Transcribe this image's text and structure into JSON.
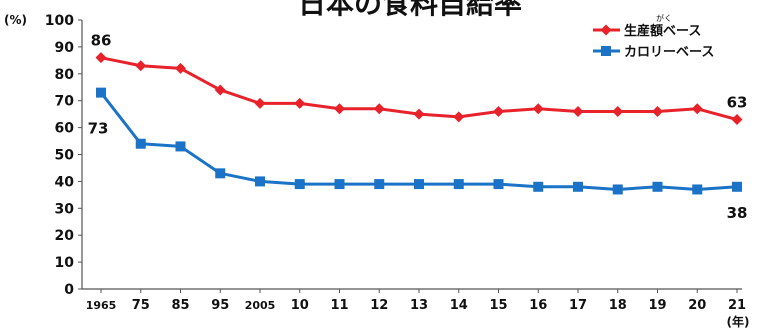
{
  "chart_data": {
    "type": "line",
    "title": "日本の食料自給率",
    "ylabel": "(%)",
    "xlabel": "(年)",
    "ylim": [
      0,
      100
    ],
    "yticks": [
      0,
      10,
      20,
      30,
      40,
      50,
      60,
      70,
      80,
      90,
      100
    ],
    "categories": [
      "1965",
      "75",
      "85",
      "95",
      "2005",
      "10",
      "11",
      "12",
      "13",
      "14",
      "15",
      "16",
      "17",
      "18",
      "19",
      "20",
      "21"
    ],
    "grid": false,
    "legend_position": "top-right",
    "legend_ruby": "がく",
    "series": [
      {
        "name": "生産額ベース",
        "color": "#e8222b",
        "marker": "diamond",
        "values": [
          86,
          83,
          82,
          74,
          69,
          69,
          67,
          67,
          65,
          64,
          66,
          67,
          66,
          66,
          66,
          67,
          63
        ]
      },
      {
        "name": "カロリーベース",
        "color": "#1a73c6",
        "marker": "square",
        "values": [
          73,
          54,
          53,
          43,
          40,
          39,
          39,
          39,
          39,
          39,
          39,
          38,
          38,
          37,
          38,
          37,
          38
        ]
      }
    ],
    "annotations": [
      {
        "series": 0,
        "index": 0,
        "text": "86"
      },
      {
        "series": 1,
        "index": 0,
        "text": "73"
      },
      {
        "series": 0,
        "index": 16,
        "text": "63"
      },
      {
        "series": 1,
        "index": 16,
        "text": "38"
      }
    ]
  }
}
